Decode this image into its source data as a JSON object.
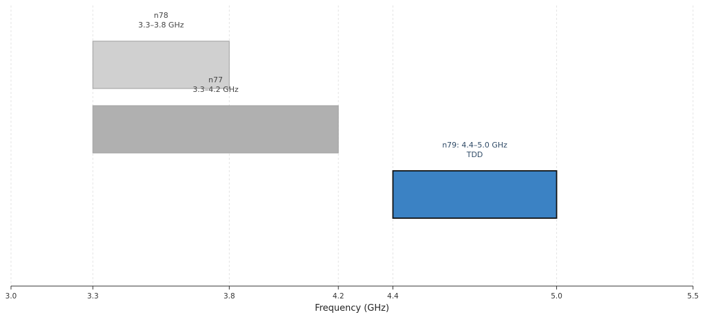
{
  "chart_data": {
    "type": "bar",
    "orientation": "horizontal-range",
    "xlabel": "Frequency (GHz)",
    "xlim": [
      3.0,
      5.5
    ],
    "xticks": [
      3.0,
      3.3,
      3.8,
      4.2,
      4.4,
      5.0,
      5.5
    ],
    "xtick_labels": [
      "3.0",
      "3.3",
      "3.8",
      "4.2",
      "4.4",
      "5.0",
      "5.5"
    ],
    "grid": "vertical dashed at tick positions",
    "bands": [
      {
        "id": "n78",
        "start": 3.3,
        "end": 3.8,
        "row": 0,
        "label_lines": [
          "n78",
          "3.3–3.8 GHz"
        ],
        "fill": "#d0d0d0",
        "stroke": "#9e9e9e",
        "label_color": "#444444"
      },
      {
        "id": "n77",
        "start": 3.3,
        "end": 4.2,
        "row": 1,
        "label_lines": [
          "n77",
          "3.3–4.2 GHz"
        ],
        "fill": "#b0b0b0",
        "stroke": "#a0a0a0",
        "label_color": "#444444"
      },
      {
        "id": "n79",
        "start": 4.4,
        "end": 5.0,
        "row": 2,
        "label_lines": [
          "n79: 4.4–5.0 GHz",
          "TDD"
        ],
        "fill": "#3b82c4",
        "stroke": "#111111",
        "label_color": "#2f4a66",
        "highlighted": true
      }
    ]
  }
}
